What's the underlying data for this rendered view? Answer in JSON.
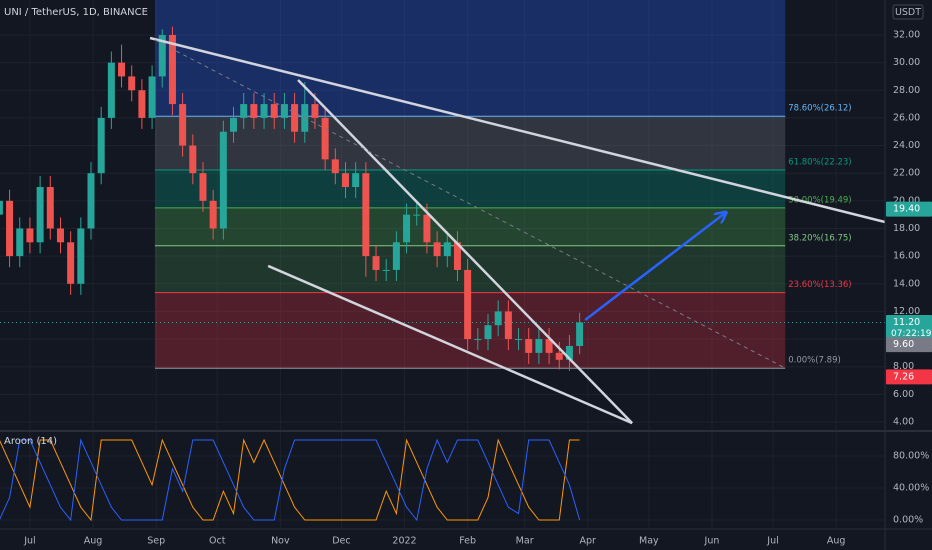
{
  "chart_data": {
    "type": "candlestick",
    "title": "UNI / TetherUS, 1D, BINANCE",
    "currency": "USDT",
    "x": [
      -15,
      -10,
      -5,
      0,
      5,
      10,
      15,
      20,
      25,
      30,
      35,
      40,
      45,
      50,
      55,
      60,
      65,
      70,
      75,
      80,
      85,
      90,
      95,
      100,
      105,
      110,
      115,
      120,
      125,
      130,
      135,
      140,
      145,
      150,
      155,
      160,
      165,
      170,
      175,
      180,
      185,
      190,
      195,
      200,
      205,
      210,
      215,
      220,
      225,
      230,
      235,
      240,
      245,
      250,
      255,
      260,
      265,
      270
    ],
    "open": [
      19,
      20,
      16,
      18,
      17,
      21,
      18,
      17,
      14,
      18,
      22,
      26,
      30,
      29,
      28,
      26,
      29,
      32,
      27,
      24,
      22,
      20,
      18,
      25,
      26,
      27,
      26,
      27,
      26,
      27,
      25,
      27,
      26,
      23,
      22,
      21,
      22,
      16,
      15,
      15,
      17,
      19,
      19,
      17,
      16,
      17,
      15,
      10,
      10,
      11,
      12,
      10,
      10,
      9,
      10,
      9,
      8.5,
      9.5
    ],
    "high": [
      20.8,
      20.8,
      18.8,
      18.8,
      21.8,
      21.8,
      18.8,
      17.8,
      18.8,
      22.8,
      26.8,
      30.8,
      31.3,
      29.8,
      28.8,
      29.8,
      32.4,
      32.6,
      27.8,
      24.8,
      22.8,
      20.8,
      25.8,
      26.8,
      27.8,
      27.8,
      27.8,
      27.8,
      27.8,
      27.8,
      28.6,
      27.8,
      26.8,
      23.8,
      22.8,
      22.8,
      22.8,
      16.8,
      15.8,
      17.8,
      19.8,
      20,
      19.8,
      17.8,
      17.8,
      17.8,
      15.8,
      10.8,
      11.8,
      12.8,
      12.8,
      10.8,
      10.8,
      10.8,
      10.8,
      9.8,
      10.3,
      11.9
    ],
    "low": [
      18.2,
      15.2,
      15.2,
      16.2,
      16.2,
      17.2,
      16.2,
      13.2,
      13.2,
      17.2,
      21.2,
      25.2,
      28.2,
      27.2,
      25.2,
      25.2,
      28.2,
      26.2,
      23.2,
      21.2,
      19.2,
      17.2,
      17.2,
      24.2,
      25.2,
      25.2,
      25.2,
      25.2,
      25.2,
      24.2,
      24.2,
      25.2,
      22.2,
      21.2,
      20.2,
      20.2,
      14.5,
      14.2,
      14.2,
      14.2,
      16.2,
      18.2,
      16.2,
      15.2,
      15.2,
      14.2,
      9.2,
      9.2,
      9.2,
      10.2,
      9.2,
      9.2,
      8.2,
      8.2,
      8.2,
      7.8,
      7.7,
      8.9
    ],
    "close": [
      20,
      16,
      18,
      17,
      21,
      18,
      17,
      14,
      18,
      22,
      26,
      30,
      29,
      28,
      26,
      29,
      32,
      27,
      24,
      22,
      20,
      18,
      25,
      26,
      27,
      26,
      27,
      26,
      27,
      25,
      27,
      26,
      23,
      22,
      21,
      22,
      16,
      15,
      15,
      17,
      19,
      19,
      17,
      16,
      17,
      15,
      10,
      10,
      11,
      12,
      10,
      10,
      9,
      10,
      9,
      8.5,
      9.5,
      11.2
    ],
    "up_color": "#26a69a",
    "down_color": "#ef5350",
    "xlim": [
      -14.7,
      420
    ],
    "xticks": [
      {
        "value": 0,
        "label": "Jul"
      },
      {
        "value": 31,
        "label": "Aug"
      },
      {
        "value": 62,
        "label": "Sep"
      },
      {
        "value": 92,
        "label": "Oct"
      },
      {
        "value": 123,
        "label": "Nov"
      },
      {
        "value": 153,
        "label": "Dec"
      },
      {
        "value": 184,
        "label": "2022"
      },
      {
        "value": 215,
        "label": "Feb"
      },
      {
        "value": 243,
        "label": "Mar"
      },
      {
        "value": 274,
        "label": "Apr"
      },
      {
        "value": 304,
        "label": "May"
      },
      {
        "value": 335,
        "label": "Jun"
      },
      {
        "value": 365,
        "label": "Jul"
      },
      {
        "value": 396,
        "label": "Aug"
      }
    ],
    "ylim": [
      3.42,
      34.53
    ],
    "yticks": [
      {
        "value": 4,
        "label": "4.00"
      },
      {
        "value": 6,
        "label": "6.00"
      },
      {
        "value": 8,
        "label": "8.00"
      },
      {
        "value": 10,
        "label": "10.00"
      },
      {
        "value": 12,
        "label": "12.00"
      },
      {
        "value": 14,
        "label": "14.00"
      },
      {
        "value": 16,
        "label": "16.00"
      },
      {
        "value": 18,
        "label": "18.00"
      },
      {
        "value": 20,
        "label": "20.00"
      },
      {
        "value": 22,
        "label": "22.00"
      },
      {
        "value": 24,
        "label": "24.00"
      },
      {
        "value": 26,
        "label": "26.00"
      },
      {
        "value": 28,
        "label": "28.00"
      },
      {
        "value": 30,
        "label": "30.00"
      },
      {
        "value": 32,
        "label": "32.00"
      }
    ],
    "grid": true,
    "last_price": 11.2,
    "fib": {
      "x": [
        61.4,
        371
      ],
      "levels": [
        {
          "value": 7.89,
          "label": "0.00%(7.89)",
          "color": "#9598a1",
          "fill": "rgba(242,54,69,0.28)"
        },
        {
          "value": 13.36,
          "label": "23.60%(13.36)",
          "color": "#f23645",
          "fill": "rgba(76,175,80,0.22)"
        },
        {
          "value": 16.75,
          "label": "38.20%(16.75)",
          "color": "#81c784",
          "fill": "rgba(76,175,80,0.3)"
        },
        {
          "value": 19.49,
          "label": "50.00%(19.49)",
          "color": "#4caf50",
          "fill": "rgba(8,153,129,0.3)"
        },
        {
          "value": 22.23,
          "label": "61.80%(22.23)",
          "color": "#089981",
          "fill": "rgba(120,123,134,0.3)"
        },
        {
          "value": 26.12,
          "label": "78.60%(26.12)",
          "color": "#64b5f6",
          "fill": "rgba(41,98,255,0.3)"
        }
      ]
    },
    "drawings": [
      {
        "x": [
          59,
          420
        ],
        "y": [
          31.78,
          18.47
        ],
        "color": "#d1d4dc",
        "width": 2.5
      },
      {
        "x": [
          131.7,
          295.8
        ],
        "y": [
          28.74,
          3.92
        ],
        "color": "#d1d4dc",
        "width": 2.5
      },
      {
        "x": [
          117,
          295.8
        ],
        "y": [
          15.29,
          3.92
        ],
        "color": "#d1d4dc",
        "width": 2.5
      },
      {
        "x": [
          61.4,
          371
        ],
        "y": [
          31.64,
          7.9
        ],
        "color": "#787b86",
        "width": 1,
        "dashed": true
      },
      {
        "x": [
          272.7,
          341.5
        ],
        "y": [
          11.38,
          19.12
        ],
        "color": "#2962ff",
        "width": 2.5,
        "arrow": true
      }
    ],
    "price_labels": [
      {
        "value": 19.4,
        "label": "19.40",
        "color": "#26a69a"
      },
      {
        "value": 11.2,
        "label": "11.20",
        "time": "07:22:19",
        "color": "#26a69a"
      },
      {
        "value": 9.6,
        "label": "9.60",
        "color": "#787b86"
      },
      {
        "value": 7.26,
        "label": "7.26",
        "color": "#f23645"
      }
    ],
    "indicator": {
      "title": "Aroon (14)",
      "type": "line",
      "ylim": [
        -10,
        110
      ],
      "yticks": [
        {
          "value": 0,
          "label": "0.00%"
        },
        {
          "value": 40,
          "label": "40.00%"
        },
        {
          "value": 80,
          "label": "80.00%"
        }
      ],
      "series": [
        {
          "color": "#ff9800",
          "values": [
            100,
            72,
            44,
            16,
            100,
            100,
            72,
            44,
            16,
            0,
            100,
            100,
            100,
            100,
            72,
            44,
            100,
            72,
            44,
            16,
            0,
            0,
            36,
            8,
            100,
            72,
            100,
            72,
            44,
            16,
            0,
            0,
            0,
            0,
            0,
            0,
            0,
            0,
            36,
            8,
            100,
            72,
            44,
            16,
            0,
            0,
            0,
            0,
            28,
            100,
            72,
            44,
            16,
            0,
            0,
            0,
            100,
            100
          ]
        },
        {
          "color": "#2962ff",
          "values": [
            0,
            28,
            100,
            100,
            72,
            44,
            16,
            0,
            100,
            72,
            44,
            16,
            0,
            0,
            0,
            0,
            0,
            64,
            36,
            100,
            100,
            100,
            72,
            44,
            16,
            0,
            0,
            0,
            64,
            100,
            100,
            100,
            100,
            100,
            100,
            100,
            100,
            100,
            72,
            44,
            16,
            0,
            64,
            100,
            72,
            100,
            100,
            100,
            72,
            44,
            16,
            8,
            100,
            100,
            100,
            72,
            44,
            0
          ]
        }
      ]
    }
  }
}
